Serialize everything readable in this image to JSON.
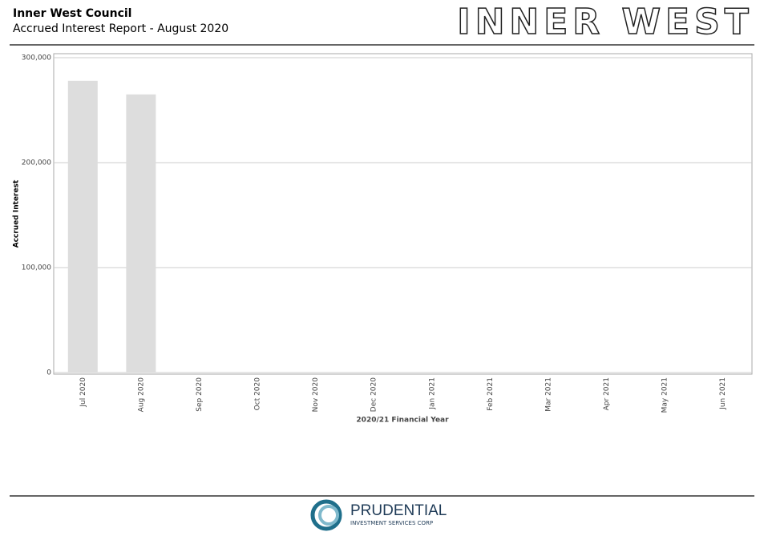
{
  "header": {
    "title": "Inner West Council",
    "subtitle": "Accrued Interest Report - August 2020",
    "logo": "INNER WEST"
  },
  "chart_data": {
    "type": "bar",
    "categories": [
      "Jul 2020",
      "Aug 2020",
      "Sep 2020",
      "Oct 2020",
      "Nov 2020",
      "Dec 2020",
      "Jan 2021",
      "Feb 2021",
      "Mar 2021",
      "Apr 2021",
      "May 2021",
      "Jun 2021"
    ],
    "values": [
      278000,
      265000,
      null,
      null,
      null,
      null,
      null,
      null,
      null,
      null,
      null,
      null
    ],
    "color": "#dddddd",
    "ylabel": "Accrued Interest",
    "xlabel": "2020/21 Financial Year",
    "ylim": [
      0,
      300000
    ],
    "yticks": [
      0,
      {
        "value": 100000,
        "label": "100,000"
      },
      {
        "value": 200000,
        "label": "200,000"
      },
      {
        "value": 300000,
        "label": "300,000"
      }
    ],
    "grid": true
  },
  "footer": {
    "brand": "PRUDENTIAL",
    "tagline": "INVESTMENT SERVICES CORP"
  }
}
